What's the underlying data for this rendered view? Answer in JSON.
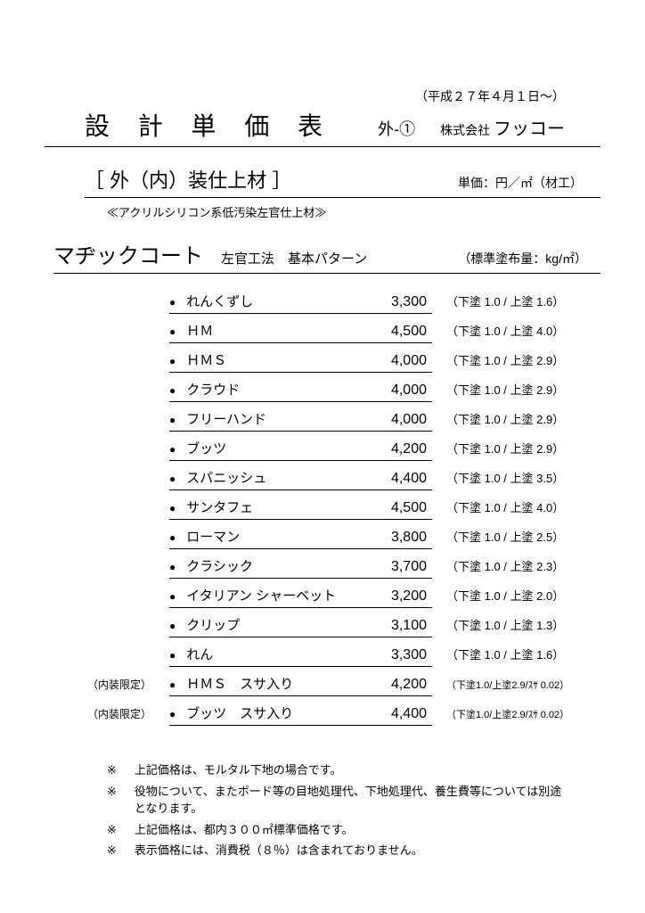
{
  "date": "（平成２７年４月１日～）",
  "title": "設 計 単 価 表",
  "pageNum": "外-①",
  "companyPrefix": "株式会社",
  "companyName": "フッコー",
  "sectionTitle": "［ 外（内）装仕上材 ］",
  "unitLabel": "単価：円／㎡（材工）",
  "subtitle": "≪アクリルシリコン系低汚染左官仕上材≫",
  "productName": "マヂックコート",
  "method": "左官工法　基本パターン",
  "coatingLabel": "（標準塗布量：kg/㎡）",
  "items": [
    {
      "prefix": "",
      "name": "れんくずし",
      "price": "3,300",
      "note": "（下塗 1.0 / 上塗 1.6）",
      "small": false
    },
    {
      "prefix": "",
      "name": "ＨＭ",
      "price": "4,500",
      "note": "（下塗 1.0 / 上塗 4.0）",
      "small": false
    },
    {
      "prefix": "",
      "name": "ＨＭＳ",
      "price": "4,000",
      "note": "（下塗 1.0 / 上塗 2.9）",
      "small": false
    },
    {
      "prefix": "",
      "name": "クラウド",
      "price": "4,000",
      "note": "（下塗 1.0 / 上塗 2.9）",
      "small": false
    },
    {
      "prefix": "",
      "name": "フリーハンド",
      "price": "4,000",
      "note": "（下塗 1.0 / 上塗 2.9）",
      "small": false
    },
    {
      "prefix": "",
      "name": "ブッツ",
      "price": "4,200",
      "note": "（下塗 1.0 / 上塗 2.9）",
      "small": false
    },
    {
      "prefix": "",
      "name": "スパニッシュ",
      "price": "4,400",
      "note": "（下塗 1.0 / 上塗 3.5）",
      "small": false
    },
    {
      "prefix": "",
      "name": "サンタフェ",
      "price": "4,500",
      "note": "（下塗 1.0 / 上塗 4.0）",
      "small": false
    },
    {
      "prefix": "",
      "name": "ローマン",
      "price": "3,800",
      "note": "（下塗 1.0 / 上塗 2.5）",
      "small": false
    },
    {
      "prefix": "",
      "name": "クラシック",
      "price": "3,700",
      "note": "（下塗 1.0 / 上塗 2.3）",
      "small": false
    },
    {
      "prefix": "",
      "name": "イタリアン シャーベット",
      "price": "3,200",
      "note": "（下塗 1.0 / 上塗 2.0）",
      "small": false
    },
    {
      "prefix": "",
      "name": "クリップ",
      "price": "3,100",
      "note": "（下塗 1.0 / 上塗 1.3）",
      "small": false
    },
    {
      "prefix": "",
      "name": "れん",
      "price": "3,300",
      "note": "（下塗 1.0 / 上塗 1.6）",
      "small": false
    },
    {
      "prefix": "（内装限定）",
      "name": "ＨＭＳ　スサ入り",
      "price": "4,200",
      "note": "（下塗1.0/上塗2.9/ｽｻ 0.02）",
      "small": true
    },
    {
      "prefix": "（内装限定）",
      "name": "ブッツ　スサ入り",
      "price": "4,400",
      "note": "（下塗1.0/上塗2.9/ｽｻ 0.02）",
      "small": true
    }
  ],
  "footnotes": [
    "上記価格は、モルタル下地の場合です。",
    "役物について、またボード等の目地処理代、下地処理代、養生費等については別途となります。",
    "上記価格は、都内３００㎡標準価格です。",
    "表示価格には、消費税（８％）は含まれておりません。"
  ],
  "footnoteMark": "※"
}
